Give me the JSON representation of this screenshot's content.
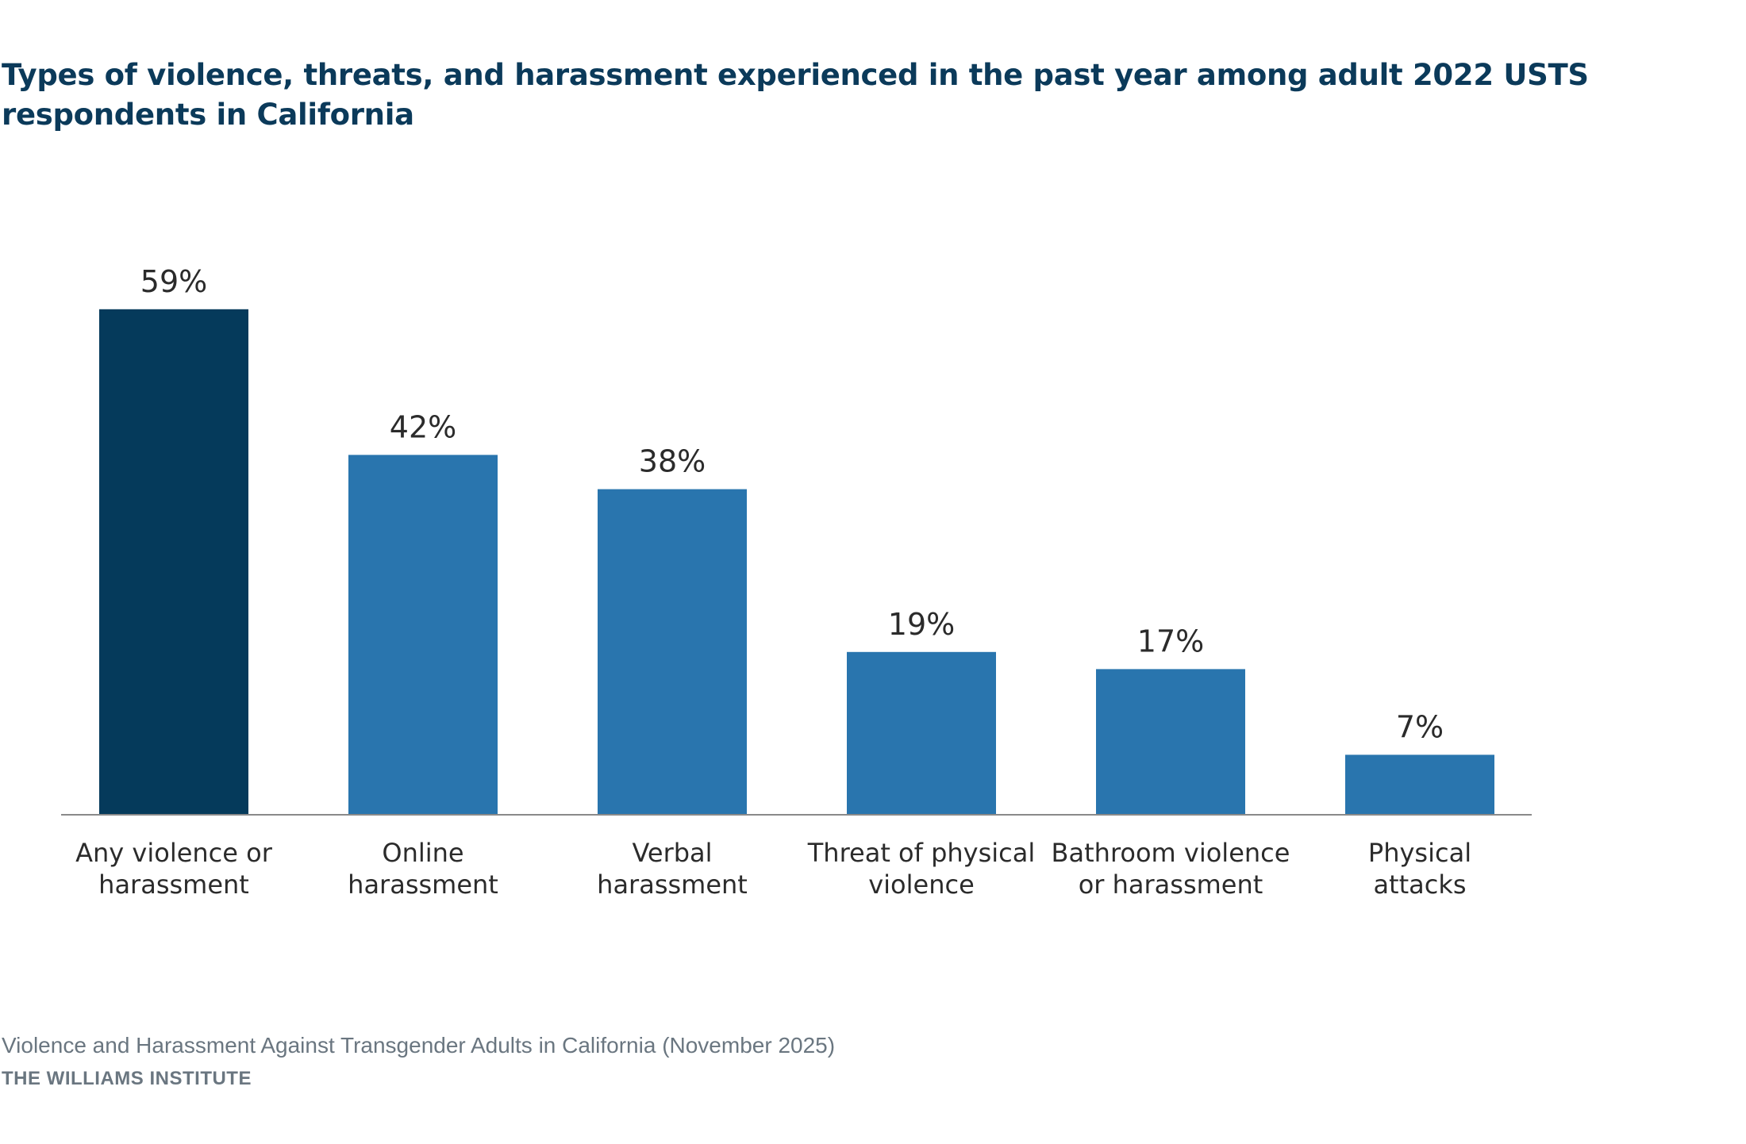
{
  "chart_data": {
    "type": "bar",
    "title": "Types of violence, threats, and harassment experienced in the past year among adult 2022 USTS respondents in California",
    "categories": [
      [
        "Any violence or",
        "harassment"
      ],
      [
        "Online",
        "harassment"
      ],
      [
        "Verbal",
        "harassment"
      ],
      [
        "Threat of physical",
        "violence"
      ],
      [
        "Bathroom violence",
        "or harassment"
      ],
      [
        "Physical",
        "attacks"
      ]
    ],
    "values": [
      59,
      42,
      38,
      19,
      17,
      7
    ],
    "value_labels": [
      "59%",
      "42%",
      "38%",
      "19%",
      "17%",
      "7%"
    ],
    "highlight_color": "#053a5b",
    "bar_color": "#2975ae",
    "axis_color": "#8a8a8a",
    "ylim": [
      0,
      60
    ],
    "grid": false,
    "xlabel": "",
    "ylabel": ""
  },
  "footer": {
    "source": "Violence and Harassment Against Transgender Adults in California (November 2025)",
    "institute": "THE WILLIAMS INSTITUTE"
  }
}
